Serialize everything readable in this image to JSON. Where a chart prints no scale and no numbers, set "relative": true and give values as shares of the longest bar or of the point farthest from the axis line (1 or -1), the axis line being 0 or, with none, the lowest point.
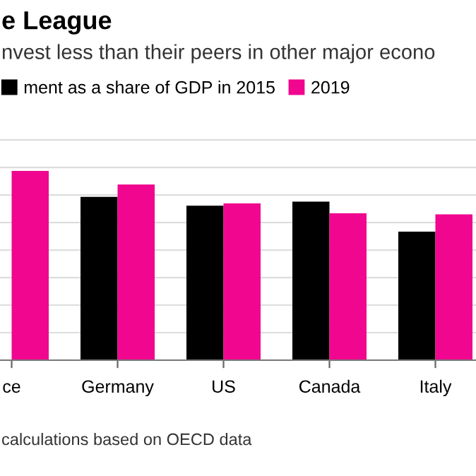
{
  "chart_data": {
    "type": "bar",
    "relative": true,
    "title": "e League",
    "subtitle": "nvest less than their peers in other major econo",
    "categories": [
      "ce",
      "Germany",
      "US",
      "Canada",
      "Italy"
    ],
    "series": [
      {
        "name": "ment as a share of GDP in 2015",
        "color": "#000000",
        "values": [
          null,
          0.863,
          0.816,
          0.838,
          0.679
        ]
      },
      {
        "name": "2019",
        "color": "#f0068f",
        "values": [
          1.0,
          0.928,
          0.828,
          0.776,
          0.771
        ]
      }
    ],
    "grid": "y",
    "legend": "top left",
    "tick_labels": "x",
    "annotations": [
      "calculations based on OECD data"
    ]
  }
}
